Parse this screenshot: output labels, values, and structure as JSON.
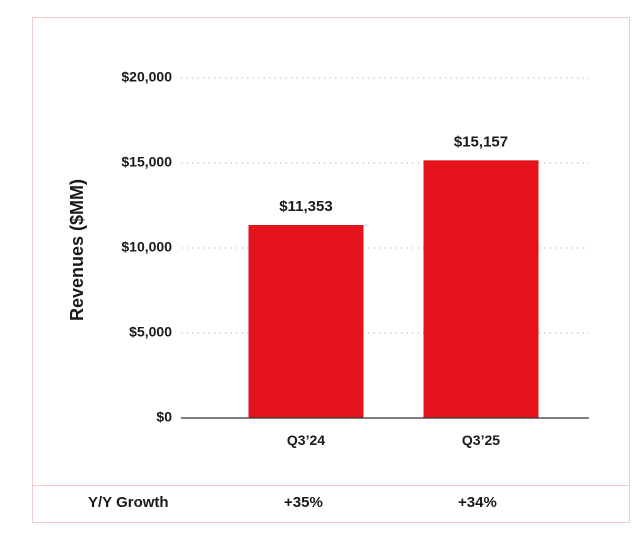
{
  "chart_data": {
    "type": "bar",
    "ylabel": "Revenues ($MM)",
    "categories": [
      "Q3’24",
      "Q3’25"
    ],
    "values": [
      11353,
      15157
    ],
    "data_labels": [
      "$11,353",
      "$15,157"
    ],
    "yticks": [
      {
        "value": 0,
        "label": "$0"
      },
      {
        "value": 5000,
        "label": "$5,000"
      },
      {
        "value": 10000,
        "label": "$10,000"
      },
      {
        "value": 15000,
        "label": "$15,000"
      },
      {
        "value": 20000,
        "label": "$20,000"
      }
    ],
    "ylim": [
      0,
      20000
    ],
    "grid": true,
    "bar_color": "#e3121b"
  },
  "growth_row": {
    "label": "Y/Y Growth",
    "values": [
      "+35%",
      "+34%"
    ]
  }
}
